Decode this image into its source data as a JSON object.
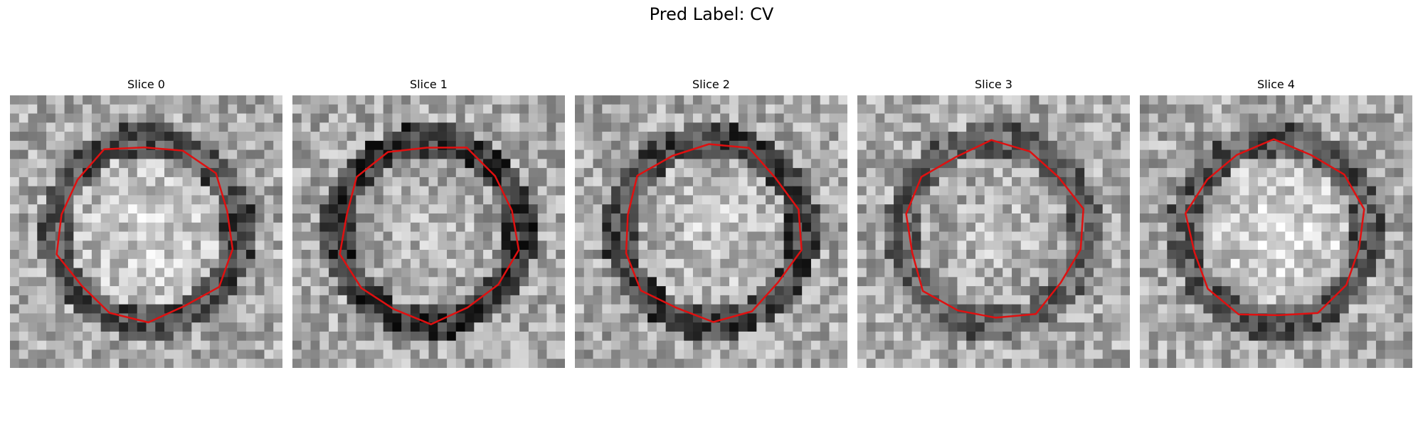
{
  "figure": {
    "title": "Pred Label: CV"
  },
  "panels": [
    {
      "title": "Slice 0",
      "seed": 11,
      "inner_brightness": 0.82,
      "ring_strength": 0.55
    },
    {
      "title": "Slice 1",
      "seed": 23,
      "inner_brightness": 0.74,
      "ring_strength": 0.65
    },
    {
      "title": "Slice 2",
      "seed": 37,
      "inner_brightness": 0.78,
      "ring_strength": 0.6
    },
    {
      "title": "Slice 3",
      "seed": 41,
      "inner_brightness": 0.74,
      "ring_strength": 0.45
    },
    {
      "title": "Slice 4",
      "seed": 59,
      "inner_brightness": 0.86,
      "ring_strength": 0.5
    }
  ],
  "colors": {
    "contour": "#e01010",
    "background": "#ffffff"
  }
}
